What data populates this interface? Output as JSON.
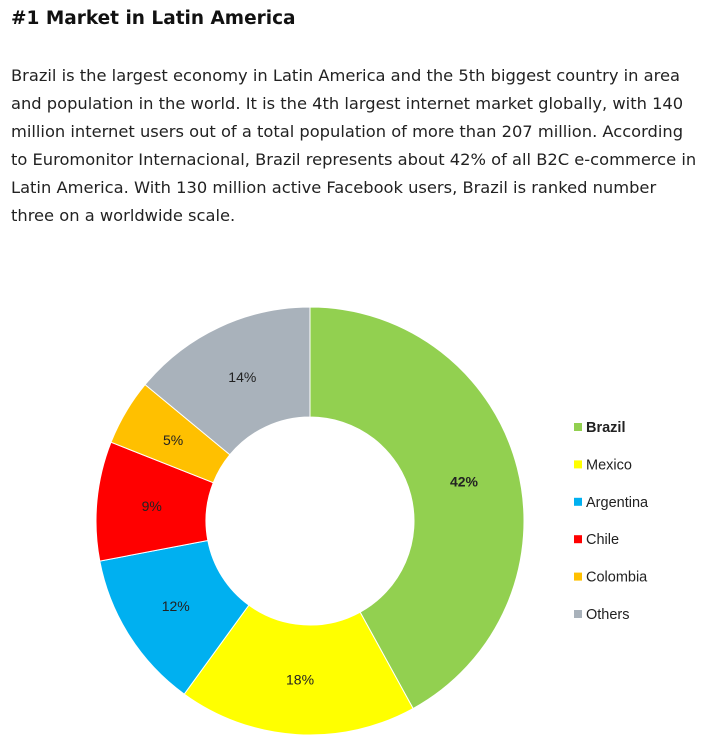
{
  "heading": "#1 Market in Latin America",
  "paragraph_lines": [
    "Brazil is the largest economy in Latin America and the 5th biggest country in area",
    "and population in the world. It is the 4th largest internet market globally, with 140",
    "million internet users out of a total population of more than 207 million. According",
    "to Euromonitor Internacional, Brazil represents about 42% of all B2C e-commerce in",
    "Latin America. With 130 million active Facebook users, Brazil is ranked number",
    "three on a worldwide scale."
  ],
  "chart_data": {
    "type": "pie",
    "style": "donut",
    "title": "",
    "legend_position": "right",
    "categories": [
      "Brazil",
      "Mexico",
      "Argentina",
      "Chile",
      "Colombia",
      "Others"
    ],
    "values": [
      42,
      18,
      12,
      9,
      5,
      14
    ],
    "data_labels": [
      "42%",
      "18%",
      "12%",
      "9%",
      "5%",
      "14%"
    ],
    "colors": [
      "#92d050",
      "#ffff00",
      "#00b0f0",
      "#ff0000",
      "#ffc000",
      "#a9b2bb"
    ],
    "emphasized_category": "Brazil"
  }
}
